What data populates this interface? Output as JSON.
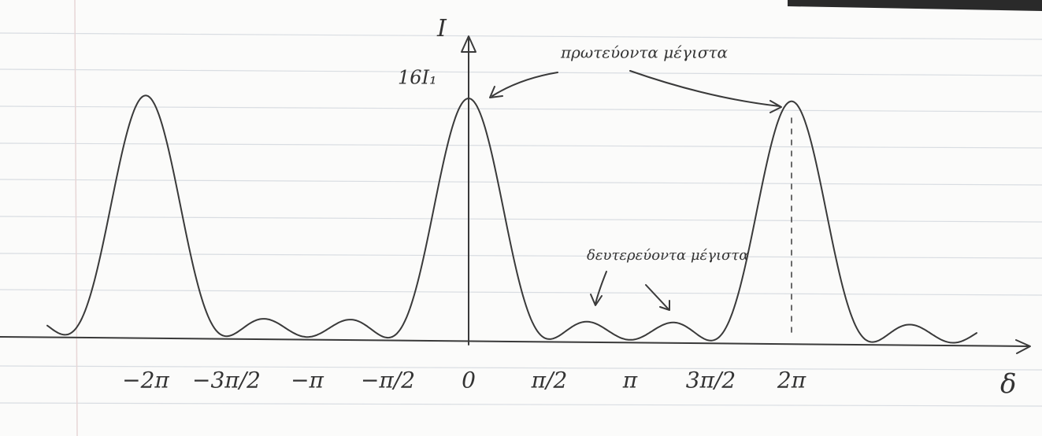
{
  "axis": {
    "y_label": "I",
    "x_label": "δ",
    "peak_label": "16I₁"
  },
  "ticks": [
    "−2π",
    "−3π/2",
    "−π",
    "−π/2",
    "0",
    "π/2",
    "π",
    "3π/2",
    "2π"
  ],
  "annotations": {
    "principal": "πρωτεύοντα μέγιστα",
    "secondary": "δευτερεύοντα μέγιστα"
  }
}
